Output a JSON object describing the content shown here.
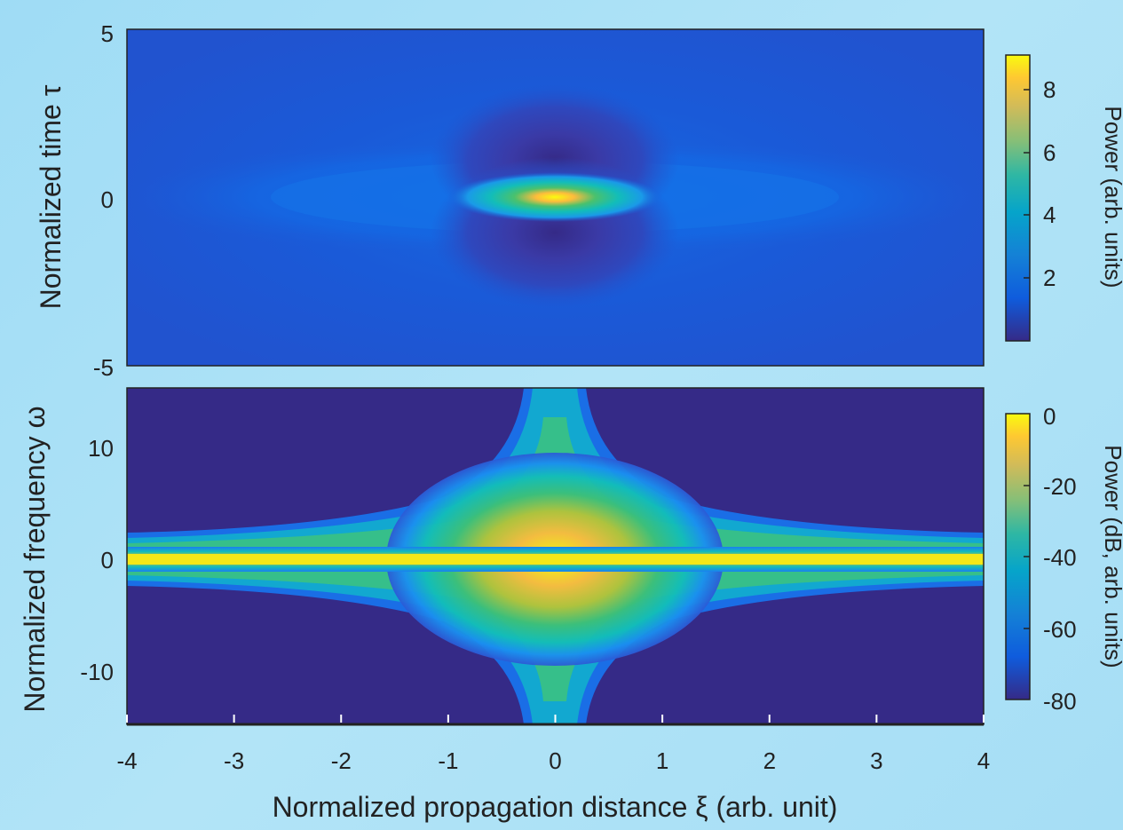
{
  "chart_data": [
    {
      "type": "heatmap",
      "xlabel": "",
      "ylabel": "Normalized time τ",
      "xlim": [
        -4,
        4
      ],
      "ylim": [
        -5,
        5
      ],
      "yticks": [
        "5",
        "0",
        "-5"
      ],
      "colorbar": {
        "label": "Power (arb. units)",
        "range": [
          0,
          9
        ],
        "ticks": [
          "8",
          "6",
          "4",
          "2"
        ]
      },
      "features": "Peregrine-like soliton: bright peak at ξ=0, τ=0 (max ≈ 9) with two dark side lobes near τ = ±1; background ≈ 1"
    },
    {
      "type": "heatmap",
      "xlabel": "Normalized propagation distance ξ (arb. unit)",
      "ylabel": "Normalized frequency ω",
      "xlim": [
        -4,
        4
      ],
      "ylim": [
        -15,
        15
      ],
      "xticks": [
        "-4",
        "-3",
        "-2",
        "-1",
        "0",
        "1",
        "2",
        "3",
        "4"
      ],
      "yticks": [
        "10",
        "0",
        "-10"
      ],
      "colorbar": {
        "label": "Power (dB, arb. units)",
        "range": [
          -80,
          0
        ],
        "ticks": [
          "0",
          "-20",
          "-40",
          "-60",
          "-80"
        ]
      },
      "features": "Spectral broadening at ξ=0 forming a cross/star shape; narrow spectrum at |ξ|=4"
    }
  ],
  "colors": {
    "parula_dark": "#352a87",
    "parula_blue": "#0f5cdd",
    "parula_teal": "#12bdb9",
    "parula_orange": "#fdbc3c",
    "parula_yellow": "#f9fb0e"
  }
}
